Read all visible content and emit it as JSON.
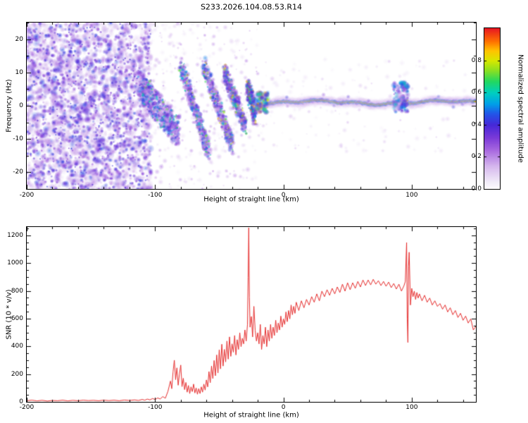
{
  "title": "S233.2026.104.08.53.R14",
  "chart_data": [
    {
      "type": "heatmap",
      "panel": "spectrogram",
      "title": "S233.2026.104.08.53.R14",
      "xlabel": "Height of straight line (km)",
      "ylabel": "Frequency (Hz)",
      "xlim": [
        -200,
        150
      ],
      "ylim": [
        -25,
        25
      ],
      "xticks": [
        -200,
        -100,
        0,
        100
      ],
      "xminor": 20,
      "yticks": [
        -20,
        -10,
        0,
        10,
        20
      ],
      "yminor": 5,
      "grid": false,
      "colorbar": {
        "label": "Normalized spectral amplitude",
        "range": [
          0,
          1
        ],
        "ticks": [
          0,
          0.2,
          0.4,
          0.6,
          0.8
        ]
      },
      "colormap_stops": [
        [
          0.0,
          "#ffffff"
        ],
        [
          0.05,
          "#f0e9f8"
        ],
        [
          0.14,
          "#d7b9ee"
        ],
        [
          0.24,
          "#a96ae0"
        ],
        [
          0.32,
          "#7b3ad8"
        ],
        [
          0.4,
          "#4628d8"
        ],
        [
          0.47,
          "#2256e8"
        ],
        [
          0.53,
          "#00a0e8"
        ],
        [
          0.6,
          "#00cfc0"
        ],
        [
          0.67,
          "#22d860"
        ],
        [
          0.74,
          "#8ee020"
        ],
        [
          0.8,
          "#d8e800"
        ],
        [
          0.86,
          "#ffc400"
        ],
        [
          0.92,
          "#ff7000"
        ],
        [
          1.0,
          "#e81822"
        ]
      ],
      "features": {
        "broadband_noise": {
          "x_range": [
            -200,
            -103
          ],
          "freq_range": [
            -25,
            25
          ],
          "amplitude_range": [
            0.06,
            0.46
          ],
          "blob_count": 2600,
          "dark_blob_count": 550
        },
        "background_speckle": {
          "x_range": [
            -103,
            -20
          ],
          "freq_range": [
            -25,
            25
          ],
          "amplitude_range": [
            0.05,
            0.25
          ],
          "blob_count": 360
        },
        "right_speckle": {
          "x_range": [
            -20,
            150
          ],
          "freq_range": [
            -14,
            14
          ],
          "amplitude_range": [
            0.05,
            0.16
          ],
          "blob_count": 170
        },
        "striations": [
          {
            "from": [
              -112,
              6
            ],
            "to": [
              -82,
              -8
            ],
            "width_hz": 9,
            "blob_count": 700,
            "amplitude_range": [
              0.15,
              0.72
            ]
          },
          {
            "from": [
              -80,
              12
            ],
            "to": [
              -58,
              -14
            ],
            "width_hz": 5,
            "blob_count": 520,
            "amplitude_range": [
              0.15,
              0.8
            ]
          },
          {
            "from": [
              -62,
              12
            ],
            "to": [
              -40,
              -12
            ],
            "width_hz": 5,
            "blob_count": 500,
            "amplitude_range": [
              0.15,
              0.85
            ]
          },
          {
            "from": [
              -46,
              10
            ],
            "to": [
              -30,
              -6
            ],
            "width_hz": 5,
            "blob_count": 430,
            "amplitude_range": [
              0.2,
              0.9
            ]
          },
          {
            "from": [
              -28,
              6
            ],
            "to": [
              -22,
              -3
            ],
            "width_hz": 6,
            "blob_count": 280,
            "amplitude_range": [
              0.3,
              0.95
            ]
          }
        ],
        "echo_line": {
          "x_range": [
            -21,
            150
          ],
          "center_freq_hz": 1.0,
          "wiggle_hz": 0.6,
          "peak_amplitude": 1.0
        },
        "disturbances": [
          {
            "x_range": [
              86,
              97
            ],
            "freq_range": [
              -2,
              7
            ],
            "amplitude_range": [
              0.15,
              0.6
            ],
            "blob_count": 150
          },
          {
            "x_range": [
              -21,
              -12
            ],
            "freq_range": [
              -2,
              4
            ],
            "amplitude_range": [
              0.3,
              0.9
            ],
            "blob_count": 90
          }
        ]
      }
    },
    {
      "type": "line",
      "panel": "snr",
      "xlabel": "Height of straight line (km)",
      "ylabel": "SNR (10 * v/v)",
      "xlim": [
        -200,
        150
      ],
      "ylim": [
        0,
        1260
      ],
      "xticks": [
        -200,
        -100,
        0,
        100
      ],
      "xminor": 20,
      "yticks": [
        0,
        200,
        400,
        600,
        800,
        1000,
        1200
      ],
      "yminor": 50,
      "grid": false,
      "series": [
        {
          "name": "SNR",
          "color": "#e62e2e",
          "points": [
            [
              -200,
              8
            ],
            [
              -196,
              12
            ],
            [
              -192,
              7
            ],
            [
              -188,
              11
            ],
            [
              -184,
              6
            ],
            [
              -180,
              10
            ],
            [
              -176,
              8
            ],
            [
              -172,
              12
            ],
            [
              -168,
              7
            ],
            [
              -164,
              11
            ],
            [
              -160,
              8
            ],
            [
              -156,
              12
            ],
            [
              -152,
              9
            ],
            [
              -148,
              11
            ],
            [
              -144,
              8
            ],
            [
              -140,
              12
            ],
            [
              -136,
              9
            ],
            [
              -132,
              12
            ],
            [
              -128,
              8
            ],
            [
              -124,
              13
            ],
            [
              -120,
              10
            ],
            [
              -116,
              14
            ],
            [
              -113,
              10
            ],
            [
              -110,
              17
            ],
            [
              -108,
              12
            ],
            [
              -106,
              20
            ],
            [
              -104,
              14
            ],
            [
              -102,
              24
            ],
            [
              -100,
              17
            ],
            [
              -98,
              28
            ],
            [
              -96,
              21
            ],
            [
              -94,
              38
            ],
            [
              -92,
              26
            ],
            [
              -90,
              75
            ],
            [
              -88,
              150
            ],
            [
              -87,
              95
            ],
            [
              -86,
              215
            ],
            [
              -85,
              300
            ],
            [
              -84,
              160
            ],
            [
              -83,
              245
            ],
            [
              -82,
              120
            ],
            [
              -81,
              200
            ],
            [
              -80,
              265
            ],
            [
              -79,
              110
            ],
            [
              -78,
              170
            ],
            [
              -77,
              88
            ],
            [
              -76,
              140
            ],
            [
              -75,
              70
            ],
            [
              -74,
              118
            ],
            [
              -73,
              60
            ],
            [
              -72,
              108
            ],
            [
              -71,
              74
            ],
            [
              -70,
              128
            ],
            [
              -69,
              64
            ],
            [
              -68,
              100
            ],
            [
              -67,
              55
            ],
            [
              -66,
              95
            ],
            [
              -65,
              60
            ],
            [
              -64,
              108
            ],
            [
              -63,
              70
            ],
            [
              -62,
              128
            ],
            [
              -61,
              85
            ],
            [
              -60,
              158
            ],
            [
              -59,
              108
            ],
            [
              -58,
              218
            ],
            [
              -57,
              138
            ],
            [
              -56,
              258
            ],
            [
              -55,
              168
            ],
            [
              -54,
              298
            ],
            [
              -53,
              188
            ],
            [
              -52,
              338
            ],
            [
              -51,
              208
            ],
            [
              -50,
              375
            ],
            [
              -49,
              238
            ],
            [
              -48,
              415
            ],
            [
              -47,
              258
            ],
            [
              -46,
              378
            ],
            [
              -45,
              288
            ],
            [
              -44,
              438
            ],
            [
              -43,
              308
            ],
            [
              -42,
              468
            ],
            [
              -41,
              328
            ],
            [
              -40,
              418
            ],
            [
              -39,
              358
            ],
            [
              -38,
              478
            ],
            [
              -37,
              338
            ],
            [
              -36,
              448
            ],
            [
              -35,
              378
            ],
            [
              -34,
              498
            ],
            [
              -33,
              398
            ],
            [
              -32,
              458
            ],
            [
              -31,
              418
            ],
            [
              -30,
              518
            ],
            [
              -29,
              438
            ],
            [
              -28,
              558
            ],
            [
              -27.5,
              895
            ],
            [
              -27,
              1255
            ],
            [
              -26.5,
              755
            ],
            [
              -26,
              538
            ],
            [
              -25,
              615
            ],
            [
              -24,
              468
            ],
            [
              -23,
              688
            ],
            [
              -22,
              515
            ],
            [
              -21,
              438
            ],
            [
              -20,
              498
            ],
            [
              -19,
              418
            ],
            [
              -18,
              558
            ],
            [
              -17,
              378
            ],
            [
              -16,
              478
            ],
            [
              -15,
              418
            ],
            [
              -14,
              538
            ],
            [
              -13,
              398
            ],
            [
              -12,
              518
            ],
            [
              -11,
              438
            ],
            [
              -10,
              558
            ],
            [
              -9,
              458
            ],
            [
              -8,
              538
            ],
            [
              -7,
              478
            ],
            [
              -6,
              588
            ],
            [
              -5,
              498
            ],
            [
              -4,
              568
            ],
            [
              -3,
              518
            ],
            [
              -2,
              618
            ],
            [
              -1,
              538
            ],
            [
              0,
              598
            ],
            [
              1,
              558
            ],
            [
              2,
              648
            ],
            [
              3,
              578
            ],
            [
              4,
              658
            ],
            [
              5,
              598
            ],
            [
              6,
              698
            ],
            [
              7,
              628
            ],
            [
              8,
              688
            ],
            [
              9,
              638
            ],
            [
              10,
              718
            ],
            [
              12,
              658
            ],
            [
              14,
              728
            ],
            [
              16,
              678
            ],
            [
              18,
              738
            ],
            [
              20,
              698
            ],
            [
              22,
              758
            ],
            [
              24,
              718
            ],
            [
              26,
              778
            ],
            [
              28,
              728
            ],
            [
              30,
              798
            ],
            [
              32,
              758
            ],
            [
              34,
              808
            ],
            [
              36,
              768
            ],
            [
              38,
              818
            ],
            [
              40,
              778
            ],
            [
              42,
              828
            ],
            [
              44,
              788
            ],
            [
              46,
              848
            ],
            [
              48,
              798
            ],
            [
              50,
              858
            ],
            [
              52,
              808
            ],
            [
              54,
              858
            ],
            [
              56,
              818
            ],
            [
              58,
              868
            ],
            [
              60,
              828
            ],
            [
              62,
              878
            ],
            [
              64,
              838
            ],
            [
              66,
              878
            ],
            [
              68,
              843
            ],
            [
              70,
              883
            ],
            [
              72,
              848
            ],
            [
              74,
              873
            ],
            [
              76,
              838
            ],
            [
              78,
              868
            ],
            [
              80,
              833
            ],
            [
              82,
              863
            ],
            [
              84,
              823
            ],
            [
              86,
              853
            ],
            [
              88,
              813
            ],
            [
              90,
              848
            ],
            [
              92,
              798
            ],
            [
              94,
              838
            ],
            [
              95,
              868
            ],
            [
              96,
              1148
            ],
            [
              96.5,
              598
            ],
            [
              97,
              428
            ],
            [
              97.5,
              978
            ],
            [
              98,
              1078
            ],
            [
              99,
              698
            ],
            [
              100,
              818
            ],
            [
              101,
              758
            ],
            [
              102,
              798
            ],
            [
              103,
              738
            ],
            [
              104,
              788
            ],
            [
              105,
              748
            ],
            [
              106,
              778
            ],
            [
              108,
              728
            ],
            [
              110,
              768
            ],
            [
              112,
              718
            ],
            [
              114,
              748
            ],
            [
              116,
              698
            ],
            [
              118,
              728
            ],
            [
              120,
              688
            ],
            [
              122,
              708
            ],
            [
              124,
              668
            ],
            [
              126,
              698
            ],
            [
              128,
              648
            ],
            [
              130,
              678
            ],
            [
              132,
              628
            ],
            [
              134,
              658
            ],
            [
              136,
              608
            ],
            [
              138,
              638
            ],
            [
              140,
              588
            ],
            [
              142,
              618
            ],
            [
              144,
              568
            ],
            [
              146,
              598
            ],
            [
              148,
              518
            ],
            [
              150,
              545
            ]
          ]
        }
      ]
    }
  ]
}
